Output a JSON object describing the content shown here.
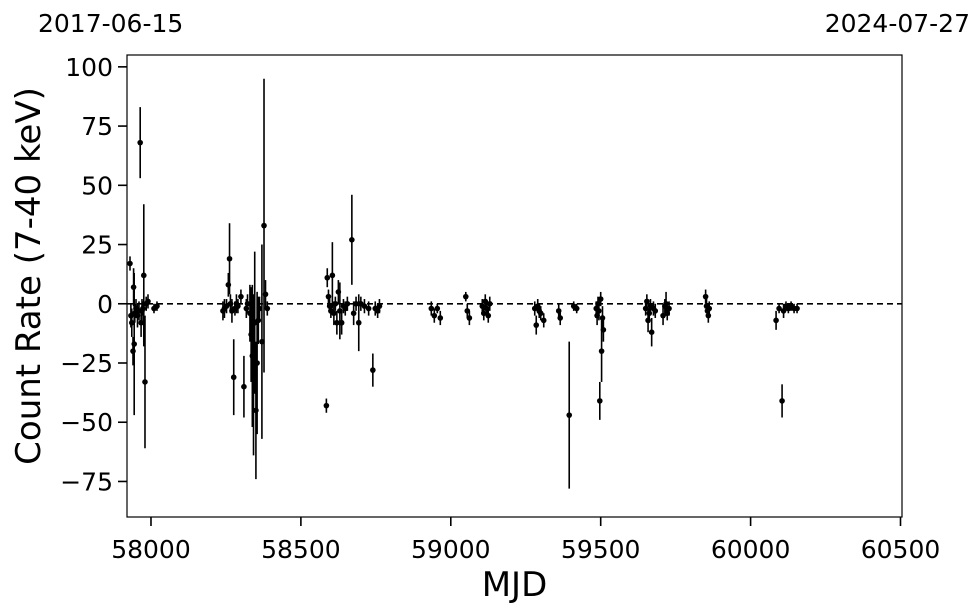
{
  "chart_data": {
    "type": "scatter",
    "xlabel": "MJD",
    "ylabel": "Count Rate (7-40 keV)",
    "top_left_date": "2017-06-15",
    "top_right_date": "2024-07-27",
    "xlim": [
      57920,
      60505
    ],
    "ylim": [
      -90,
      105
    ],
    "xticks": [
      58000,
      58500,
      59000,
      59500,
      60000,
      60500
    ],
    "yticks": [
      -75,
      -50,
      -25,
      0,
      25,
      50,
      75,
      100
    ],
    "zero_line": {
      "y": 0,
      "style": "dashed"
    },
    "series": [
      {
        "marker": "circle",
        "color": "#000000",
        "points": [
          {
            "x": 57930,
            "y": 17,
            "err": 3
          },
          {
            "x": 57933,
            "y": -5,
            "err": 5
          },
          {
            "x": 57936,
            "y": -8,
            "err": 6
          },
          {
            "x": 57940,
            "y": -20,
            "err": 6
          },
          {
            "x": 57942,
            "y": 7,
            "err": 8
          },
          {
            "x": 57944,
            "y": -17,
            "err": 30
          },
          {
            "x": 57946,
            "y": -4,
            "err": 4
          },
          {
            "x": 57950,
            "y": -2,
            "err": 4
          },
          {
            "x": 57955,
            "y": -5,
            "err": 5
          },
          {
            "x": 57960,
            "y": -3,
            "err": 4
          },
          {
            "x": 57964,
            "y": 68,
            "err": 15
          },
          {
            "x": 57967,
            "y": -8,
            "err": 6
          },
          {
            "x": 57970,
            "y": -3,
            "err": 5
          },
          {
            "x": 57973,
            "y": -2,
            "err": 3
          },
          {
            "x": 57976,
            "y": 12,
            "err": 30
          },
          {
            "x": 57980,
            "y": -33,
            "err": 28
          },
          {
            "x": 57984,
            "y": 0,
            "err": 3
          },
          {
            "x": 57990,
            "y": 1,
            "err": 3
          },
          {
            "x": 58010,
            "y": -2,
            "err": 2
          },
          {
            "x": 58020,
            "y": -1,
            "err": 2
          },
          {
            "x": 58240,
            "y": -3,
            "err": 4
          },
          {
            "x": 58245,
            "y": -2,
            "err": 4
          },
          {
            "x": 58252,
            "y": -1,
            "err": 3
          },
          {
            "x": 58258,
            "y": 8,
            "err": 5
          },
          {
            "x": 58262,
            "y": 19,
            "err": 15
          },
          {
            "x": 58265,
            "y": 0,
            "err": 4
          },
          {
            "x": 58270,
            "y": -3,
            "err": 5
          },
          {
            "x": 58276,
            "y": -31,
            "err": 16
          },
          {
            "x": 58280,
            "y": -2,
            "err": 3
          },
          {
            "x": 58285,
            "y": 0,
            "err": 4
          },
          {
            "x": 58290,
            "y": -1,
            "err": 3
          },
          {
            "x": 58300,
            "y": 3,
            "err": 3
          },
          {
            "x": 58310,
            "y": -35,
            "err": 13
          },
          {
            "x": 58318,
            "y": -2,
            "err": 4
          },
          {
            "x": 58322,
            "y": 0,
            "err": 4
          },
          {
            "x": 58330,
            "y": -4,
            "err": 12
          },
          {
            "x": 58334,
            "y": -13,
            "err": 20
          },
          {
            "x": 58338,
            "y": -22,
            "err": 30
          },
          {
            "x": 58342,
            "y": -30,
            "err": 34
          },
          {
            "x": 58346,
            "y": -8,
            "err": 30
          },
          {
            "x": 58350,
            "y": -45,
            "err": 29
          },
          {
            "x": 58354,
            "y": -25,
            "err": 30
          },
          {
            "x": 58358,
            "y": -7,
            "err": 10
          },
          {
            "x": 58362,
            "y": -2,
            "err": 5
          },
          {
            "x": 58370,
            "y": -16,
            "err": 41
          },
          {
            "x": 58377,
            "y": 33,
            "err": 62
          },
          {
            "x": 58382,
            "y": 4,
            "err": 6
          },
          {
            "x": 58388,
            "y": -2,
            "err": 3
          },
          {
            "x": 58585,
            "y": -43,
            "err": 3
          },
          {
            "x": 58588,
            "y": 11,
            "err": 4
          },
          {
            "x": 58592,
            "y": 3,
            "err": 3
          },
          {
            "x": 58596,
            "y": -1,
            "err": 3
          },
          {
            "x": 58600,
            "y": -3,
            "err": 3
          },
          {
            "x": 58605,
            "y": 12,
            "err": 14
          },
          {
            "x": 58610,
            "y": -4,
            "err": 5
          },
          {
            "x": 58615,
            "y": 0,
            "err": 3
          },
          {
            "x": 58620,
            "y": -8,
            "err": 5
          },
          {
            "x": 58625,
            "y": 5,
            "err": 5
          },
          {
            "x": 58630,
            "y": -3,
            "err": 12
          },
          {
            "x": 58636,
            "y": -8,
            "err": 5
          },
          {
            "x": 58642,
            "y": -1,
            "err": 3
          },
          {
            "x": 58648,
            "y": -2,
            "err": 3
          },
          {
            "x": 58655,
            "y": 0,
            "err": 3
          },
          {
            "x": 58670,
            "y": 27,
            "err": 19
          },
          {
            "x": 58676,
            "y": -4,
            "err": 5
          },
          {
            "x": 58684,
            "y": 0,
            "err": 3
          },
          {
            "x": 58693,
            "y": -8,
            "err": 12
          },
          {
            "x": 58700,
            "y": 0,
            "err": 3
          },
          {
            "x": 58712,
            "y": -1,
            "err": 3
          },
          {
            "x": 58726,
            "y": -2,
            "err": 3
          },
          {
            "x": 58740,
            "y": -28,
            "err": 7
          },
          {
            "x": 58748,
            "y": -2,
            "err": 3
          },
          {
            "x": 58756,
            "y": -3,
            "err": 3
          },
          {
            "x": 58762,
            "y": -1,
            "err": 3
          },
          {
            "x": 58935,
            "y": -2,
            "err": 3
          },
          {
            "x": 58945,
            "y": -5,
            "err": 3
          },
          {
            "x": 58955,
            "y": -2,
            "err": 2
          },
          {
            "x": 58965,
            "y": -6,
            "err": 3
          },
          {
            "x": 59050,
            "y": 3,
            "err": 2
          },
          {
            "x": 59055,
            "y": -3,
            "err": 3
          },
          {
            "x": 59062,
            "y": -6,
            "err": 3
          },
          {
            "x": 59105,
            "y": -1,
            "err": 3
          },
          {
            "x": 59110,
            "y": -4,
            "err": 3
          },
          {
            "x": 59115,
            "y": 1,
            "err": 3
          },
          {
            "x": 59120,
            "y": -2,
            "err": 3
          },
          {
            "x": 59125,
            "y": -5,
            "err": 3
          },
          {
            "x": 59130,
            "y": 0,
            "err": 3
          },
          {
            "x": 59280,
            "y": -2,
            "err": 3
          },
          {
            "x": 59285,
            "y": -9,
            "err": 4
          },
          {
            "x": 59290,
            "y": -1,
            "err": 3
          },
          {
            "x": 59295,
            "y": -3,
            "err": 3
          },
          {
            "x": 59300,
            "y": -4,
            "err": 3
          },
          {
            "x": 59310,
            "y": -7,
            "err": 3
          },
          {
            "x": 59360,
            "y": -3,
            "err": 3
          },
          {
            "x": 59365,
            "y": -6,
            "err": 3
          },
          {
            "x": 59395,
            "y": -47,
            "err": 31
          },
          {
            "x": 59410,
            "y": -1,
            "err": 2
          },
          {
            "x": 59420,
            "y": -2,
            "err": 2
          },
          {
            "x": 59485,
            "y": -2,
            "err": 3
          },
          {
            "x": 59488,
            "y": -5,
            "err": 4
          },
          {
            "x": 59491,
            "y": 0,
            "err": 3
          },
          {
            "x": 59494,
            "y": -3,
            "err": 4
          },
          {
            "x": 59497,
            "y": -41,
            "err": 8
          },
          {
            "x": 59500,
            "y": 2,
            "err": 3
          },
          {
            "x": 59503,
            "y": -20,
            "err": 13
          },
          {
            "x": 59506,
            "y": -6,
            "err": 5
          },
          {
            "x": 59509,
            "y": -11,
            "err": 5
          },
          {
            "x": 59650,
            "y": -2,
            "err": 3
          },
          {
            "x": 59654,
            "y": 1,
            "err": 3
          },
          {
            "x": 59658,
            "y": -7,
            "err": 5
          },
          {
            "x": 59662,
            "y": -4,
            "err": 4
          },
          {
            "x": 59666,
            "y": -1,
            "err": 3
          },
          {
            "x": 59670,
            "y": -12,
            "err": 6
          },
          {
            "x": 59676,
            "y": -2,
            "err": 3
          },
          {
            "x": 59682,
            "y": -3,
            "err": 3
          },
          {
            "x": 59708,
            "y": -5,
            "err": 4
          },
          {
            "x": 59714,
            "y": -1,
            "err": 3
          },
          {
            "x": 59718,
            "y": 0,
            "err": 5
          },
          {
            "x": 59722,
            "y": -4,
            "err": 3
          },
          {
            "x": 59728,
            "y": -2,
            "err": 3
          },
          {
            "x": 59850,
            "y": 3,
            "err": 3
          },
          {
            "x": 59853,
            "y": -1,
            "err": 3
          },
          {
            "x": 59856,
            "y": -3,
            "err": 3
          },
          {
            "x": 59859,
            "y": -5,
            "err": 3
          },
          {
            "x": 59862,
            "y": -2,
            "err": 3
          },
          {
            "x": 60085,
            "y": -7,
            "err": 4
          },
          {
            "x": 60095,
            "y": -2,
            "err": 2
          },
          {
            "x": 60105,
            "y": -41,
            "err": 7
          },
          {
            "x": 60110,
            "y": -3,
            "err": 3
          },
          {
            "x": 60118,
            "y": -1,
            "err": 2
          },
          {
            "x": 60126,
            "y": -2,
            "err": 2
          },
          {
            "x": 60135,
            "y": -1,
            "err": 2
          },
          {
            "x": 60145,
            "y": -2,
            "err": 2
          },
          {
            "x": 60155,
            "y": -2,
            "err": 2
          }
        ]
      }
    ]
  }
}
